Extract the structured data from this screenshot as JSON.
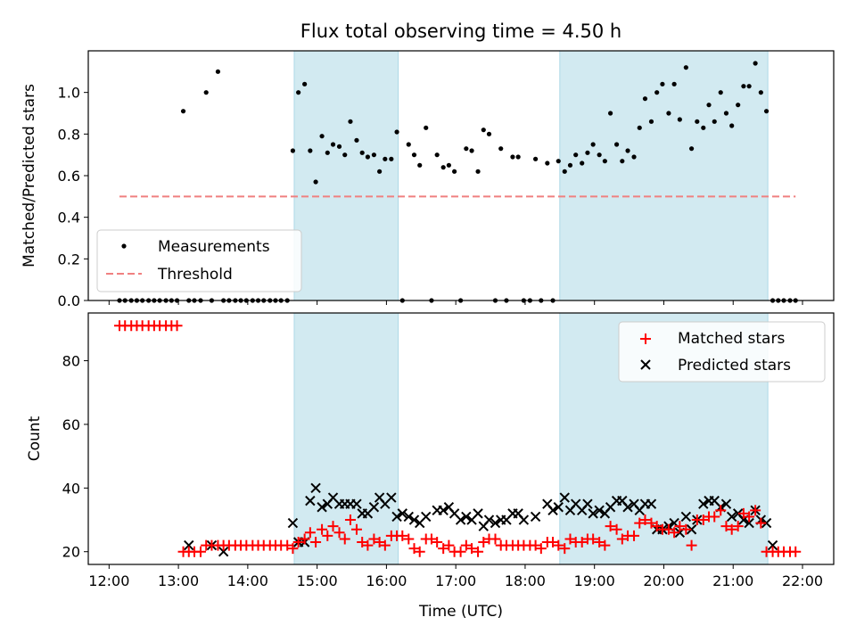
{
  "chart_data": {
    "title": "Flux total observing time = 4.50 h",
    "xlabel": "Time (UTC)",
    "x_units": "hours UTC",
    "xlim": [
      11.7,
      22.45
    ],
    "x_ticks": [
      12,
      13,
      14,
      15,
      16,
      17,
      18,
      19,
      20,
      21,
      22
    ],
    "x_tick_labels": [
      "12:00",
      "13:00",
      "14:00",
      "15:00",
      "16:00",
      "17:00",
      "18:00",
      "19:00",
      "20:00",
      "21:00",
      "22:00"
    ],
    "shaded_intervals": [
      [
        14.67,
        16.17
      ],
      [
        18.5,
        21.5
      ]
    ],
    "colors": {
      "shade": "#add8e6",
      "threshold": "#f08080",
      "matched": "#ff0000",
      "predicted": "#000000",
      "measurements": "#000000"
    },
    "panels": [
      {
        "type": "scatter",
        "ylabel": "Matched/Predicted stars",
        "ylim": [
          0,
          1.2
        ],
        "y_ticks": [
          0.0,
          0.2,
          0.4,
          0.6,
          0.8,
          1.0
        ],
        "y_tick_labels": [
          "0.0",
          "0.2",
          "0.4",
          "0.6",
          "0.8",
          "1.0"
        ],
        "legend": [
          "Measurements",
          "Threshold"
        ],
        "legend_position": "lower-left",
        "threshold": {
          "value": 0.5,
          "x_range": [
            12.15,
            21.9
          ]
        },
        "series": [
          {
            "name": "Measurements",
            "x": [
              12.15,
              12.23,
              12.32,
              12.4,
              12.48,
              12.57,
              12.65,
              12.73,
              12.82,
              12.9,
              12.98,
              13.07,
              13.15,
              13.23,
              13.32,
              13.4,
              13.48,
              13.57,
              13.65,
              13.73,
              13.82,
              13.9,
              13.98,
              14.07,
              14.15,
              14.23,
              14.32,
              14.4,
              14.48,
              14.57,
              14.65,
              14.73,
              14.82,
              14.9,
              14.98,
              15.07,
              15.15,
              15.23,
              15.32,
              15.4,
              15.48,
              15.57,
              15.65,
              15.73,
              15.82,
              15.9,
              15.98,
              16.07,
              16.15,
              16.23,
              16.32,
              16.4,
              16.48,
              16.57,
              16.65,
              16.73,
              16.82,
              16.9,
              16.98,
              17.07,
              17.15,
              17.23,
              17.32,
              17.4,
              17.48,
              17.57,
              17.65,
              17.73,
              17.82,
              17.9,
              17.98,
              18.07,
              18.15,
              18.23,
              18.32,
              18.4,
              18.48,
              18.57,
              18.65,
              18.73,
              18.82,
              18.9,
              18.98,
              19.07,
              19.15,
              19.23,
              19.32,
              19.4,
              19.48,
              19.57,
              19.65,
              19.73,
              19.82,
              19.9,
              19.98,
              20.07,
              20.15,
              20.23,
              20.32,
              20.4,
              20.48,
              20.57,
              20.65,
              20.73,
              20.82,
              20.9,
              20.98,
              21.07,
              21.15,
              21.23,
              21.32,
              21.4,
              21.48,
              21.57,
              21.65,
              21.73,
              21.82,
              21.9
            ],
            "y": [
              0,
              0,
              0,
              0,
              0,
              0,
              0,
              0,
              0,
              0,
              0,
              0.91,
              0,
              0,
              0,
              1.0,
              0,
              1.1,
              0,
              0,
              0,
              0,
              0,
              0,
              0,
              0,
              0,
              0,
              0,
              0,
              0.72,
              1.0,
              1.04,
              0.72,
              0.57,
              0.79,
              0.71,
              0.75,
              0.74,
              0.7,
              0.86,
              0.77,
              0.71,
              0.69,
              0.7,
              0.62,
              0.68,
              0.68,
              0.81,
              0,
              0.75,
              0.7,
              0.65,
              0.83,
              0,
              0.7,
              0.64,
              0.65,
              0.62,
              0,
              0.73,
              0.72,
              0.62,
              0.82,
              0.8,
              0,
              0.73,
              0,
              0.69,
              0.69,
              0,
              0,
              0.68,
              0,
              0.66,
              0,
              0.67,
              0.62,
              0.65,
              0.7,
              0.66,
              0.71,
              0.75,
              0.7,
              0.67,
              0.9,
              0.75,
              0.67,
              0.72,
              0.69,
              0.83,
              0.97,
              0.86,
              1.0,
              1.04,
              0.9,
              1.04,
              0.87,
              1.12,
              0.73,
              0.86,
              0.83,
              0.94,
              0.86,
              1.0,
              0.9,
              0.84,
              0.94,
              1.03,
              1.03,
              1.14,
              1.0,
              0.91,
              0,
              0,
              0,
              0,
              0
            ]
          }
        ]
      },
      {
        "type": "scatter",
        "ylabel": "Count",
        "ylim": [
          16,
          95
        ],
        "y_ticks": [
          20,
          40,
          60,
          80
        ],
        "y_tick_labels": [
          "20",
          "40",
          "60",
          "80"
        ],
        "legend": [
          "Matched stars",
          "Predicted stars"
        ],
        "legend_position": "upper-right",
        "series": [
          {
            "name": "Matched stars",
            "marker": "+",
            "x": [
              12.15,
              12.23,
              12.32,
              12.4,
              12.48,
              12.57,
              12.65,
              12.73,
              12.82,
              12.9,
              12.98,
              13.07,
              13.15,
              13.23,
              13.32,
              13.4,
              13.48,
              13.57,
              13.65,
              13.73,
              13.82,
              13.9,
              13.98,
              14.07,
              14.15,
              14.23,
              14.32,
              14.4,
              14.48,
              14.57,
              14.65,
              14.73,
              14.82,
              14.9,
              14.98,
              15.07,
              15.15,
              15.23,
              15.32,
              15.4,
              15.48,
              15.57,
              15.65,
              15.73,
              15.82,
              15.9,
              15.98,
              16.07,
              16.15,
              16.23,
              16.32,
              16.4,
              16.48,
              16.57,
              16.65,
              16.73,
              16.82,
              16.9,
              16.98,
              17.07,
              17.15,
              17.23,
              17.32,
              17.4,
              17.48,
              17.57,
              17.65,
              17.73,
              17.82,
              17.9,
              17.98,
              18.07,
              18.15,
              18.23,
              18.32,
              18.4,
              18.48,
              18.57,
              18.65,
              18.73,
              18.82,
              18.9,
              18.98,
              19.07,
              19.15,
              19.23,
              19.32,
              19.4,
              19.48,
              19.57,
              19.65,
              19.73,
              19.82,
              19.9,
              19.98,
              20.07,
              20.15,
              20.23,
              20.32,
              20.4,
              20.48,
              20.57,
              20.65,
              20.73,
              20.82,
              20.9,
              20.98,
              21.07,
              21.15,
              21.23,
              21.32,
              21.4,
              21.48,
              21.57,
              21.65,
              21.73,
              21.82,
              21.9
            ],
            "y": [
              91,
              91,
              91,
              91,
              91,
              91,
              91,
              91,
              91,
              91,
              91,
              20,
              20,
              20,
              20,
              22,
              22,
              22,
              22,
              22,
              22,
              22,
              22,
              22,
              22,
              22,
              22,
              22,
              22,
              22,
              21,
              23,
              24,
              26,
              23,
              27,
              25,
              28,
              26,
              24,
              30,
              27,
              23,
              22,
              24,
              23,
              22,
              25,
              25,
              25,
              24,
              21,
              20,
              24,
              24,
              23,
              21,
              22,
              20,
              20,
              22,
              21,
              20,
              23,
              24,
              24,
              22,
              22,
              22,
              22,
              22,
              22,
              22,
              21,
              23,
              23,
              22,
              21,
              24,
              23,
              23,
              24,
              24,
              23,
              22,
              28,
              27,
              24,
              25,
              25,
              29,
              30,
              29,
              28,
              27,
              27,
              26,
              28,
              27,
              22,
              30,
              30,
              31,
              31,
              33,
              28,
              27,
              28,
              32,
              31,
              33,
              29,
              20,
              20,
              20,
              20,
              20,
              20
            ]
          },
          {
            "name": "Predicted stars",
            "marker": "x",
            "x": [
              13.15,
              13.48,
              13.65,
              14.65,
              14.73,
              14.82,
              14.9,
              14.98,
              15.07,
              15.15,
              15.23,
              15.32,
              15.4,
              15.48,
              15.57,
              15.65,
              15.73,
              15.82,
              15.9,
              15.98,
              16.07,
              16.15,
              16.23,
              16.32,
              16.4,
              16.48,
              16.57,
              16.73,
              16.82,
              16.9,
              16.98,
              17.07,
              17.15,
              17.23,
              17.32,
              17.4,
              17.48,
              17.57,
              17.65,
              17.73,
              17.82,
              17.9,
              17.98,
              18.15,
              18.32,
              18.4,
              18.48,
              18.57,
              18.65,
              18.73,
              18.82,
              18.9,
              18.98,
              19.07,
              19.15,
              19.23,
              19.32,
              19.4,
              19.48,
              19.57,
              19.65,
              19.73,
              19.82,
              19.9,
              19.98,
              20.07,
              20.15,
              20.23,
              20.32,
              20.4,
              20.48,
              20.57,
              20.65,
              20.73,
              20.82,
              20.9,
              20.98,
              21.07,
              21.15,
              21.23,
              21.32,
              21.4,
              21.48,
              21.57
            ],
            "y": [
              22,
              22,
              20,
              29,
              23,
              23,
              36,
              40,
              34,
              35,
              37,
              35,
              35,
              35,
              35,
              32,
              32,
              34,
              37,
              35,
              37,
              31,
              32,
              31,
              30,
              29,
              31,
              33,
              33,
              34,
              32,
              30,
              31,
              30,
              32,
              28,
              30,
              29,
              30,
              30,
              32,
              32,
              30,
              31,
              35,
              33,
              34,
              37,
              33,
              35,
              33,
              35,
              32,
              33,
              32,
              34,
              36,
              36,
              34,
              35,
              33,
              35,
              35,
              27,
              27,
              28,
              29,
              26,
              31,
              27,
              30,
              35,
              36,
              36,
              34,
              35,
              31,
              32,
              30,
              29,
              33,
              30,
              29,
              22
            ]
          }
        ]
      }
    ]
  }
}
